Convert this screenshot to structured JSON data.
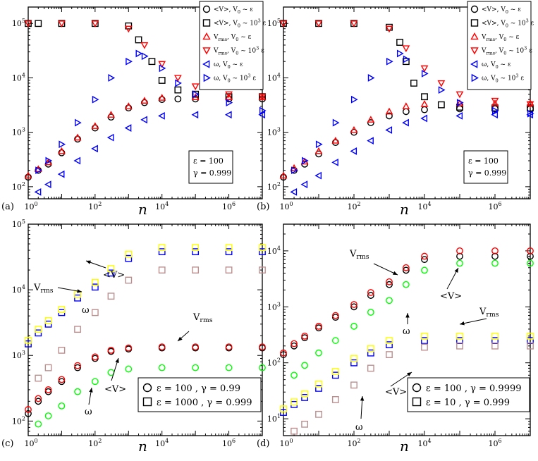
{
  "panels": [
    {
      "label": "(a)",
      "xlabel": "n",
      "xrange": [
        1,
        10000000
      ],
      "yrange": [
        60,
        200000
      ],
      "x_tick_labels": [
        "10^0",
        "10^2",
        "10^4",
        "10^6"
      ],
      "y_tick_labels": [
        "10^2",
        "10^3",
        "10^4",
        "10^5"
      ],
      "params": [
        "ε = 100",
        "γ = 0.999"
      ],
      "legend": [
        "<V>, V0 ~ ε",
        "<V>, V0 ~ 10^3 ε",
        "Vrms, V0 ~ ε",
        "Vrms, V0 ~ 10^3 ε",
        "ω, V0 ~ ε",
        "ω, V0 ~ 10^3 ε"
      ],
      "annotations": []
    },
    {
      "label": "(b)",
      "xlabel": "n",
      "xrange": [
        1,
        10000000
      ],
      "yrange": [
        60,
        200000
      ],
      "x_tick_labels": [
        "10^0",
        "10^2",
        "10^4",
        "10^6"
      ],
      "y_tick_labels": [
        "10^2",
        "10^3",
        "10^4",
        "10^5"
      ],
      "params": [
        "ε = 100",
        "γ = 0.999"
      ],
      "legend": [
        "<V>, V0 ~ ε",
        "<V>, V0 ~ 10^3 ε",
        "Vrms, V0 ~ ε",
        "Vrms, V0 ~ 10^3 ε",
        "ω, V0 ~ ε",
        "ω, V0 ~ 10^3 ε"
      ],
      "annotations": []
    },
    {
      "label": "(c)",
      "xlabel": "n",
      "xrange": [
        1,
        10000000
      ],
      "yrange": [
        60,
        100000
      ],
      "x_tick_labels": [
        "10^0",
        "10^2",
        "10^4",
        "10^6"
      ],
      "y_tick_labels": [
        "10^2",
        "10^3",
        "10^4",
        "10^5"
      ],
      "params": [],
      "legend": [
        "ε = 100 , γ = 0.99",
        "ε = 1000 , γ = 0.999"
      ],
      "annotations": [
        "Vrms",
        "ω",
        "<V>",
        "Vrms",
        "ω",
        "<V>"
      ]
    },
    {
      "label": "(d)",
      "xlabel": "n",
      "xrange": [
        1,
        10000000
      ],
      "yrange": [
        5,
        30000
      ],
      "x_tick_labels": [
        "10^0",
        "10^2",
        "10^4",
        "10^6"
      ],
      "y_tick_labels": [
        "10^1",
        "10^2",
        "10^3",
        "10^4"
      ],
      "params": [],
      "legend": [
        "ε = 100 , γ = 0.9999",
        "ε = 10 , γ = 0.999"
      ],
      "annotations": [
        "Vrms",
        "<V>",
        "ω",
        "Vrms",
        "<V>",
        "ω"
      ]
    }
  ],
  "chart_data": [
    {
      "type": "scatter",
      "title": "(a)",
      "xlabel": "n",
      "ylabel": "",
      "xscale": "log",
      "yscale": "log",
      "xlim": [
        1,
        10000000
      ],
      "ylim": [
        60,
        200000
      ],
      "series": [
        {
          "name": "<V>, V0 ~ ε",
          "marker": "circle",
          "color": "#000000",
          "x": [
            1,
            2,
            4,
            10,
            30,
            100,
            300,
            1000,
            3000,
            10000,
            30000,
            100000,
            1000000,
            10000000
          ],
          "y": [
            150,
            200,
            260,
            420,
            750,
            1200,
            1900,
            2800,
            3500,
            4000,
            4100,
            4100,
            4100,
            4100
          ]
        },
        {
          "name": "<V>, V0 ~ 10^3 ε",
          "marker": "square",
          "color": "#000000",
          "x": [
            1,
            2,
            10,
            100,
            1000,
            2000,
            5000,
            10000,
            30000,
            100000,
            1000000,
            10000000
          ],
          "y": [
            100000,
            100000,
            100000,
            100000,
            90000,
            50000,
            20000,
            9000,
            6000,
            5000,
            4500,
            4500
          ]
        },
        {
          "name": "Vrms, V0 ~ ε",
          "marker": "triangle-up",
          "color": "#ff0000",
          "x": [
            1,
            2,
            4,
            10,
            30,
            100,
            300,
            1000,
            3000,
            10000,
            100000,
            1000000,
            10000000
          ],
          "y": [
            160,
            210,
            280,
            450,
            800,
            1300,
            2100,
            3000,
            3800,
            4300,
            4400,
            4400,
            4400
          ]
        },
        {
          "name": "Vrms, V0 ~ 10^3 ε",
          "marker": "triangle-down",
          "color": "#ff0000",
          "x": [
            1,
            10,
            100,
            1000,
            3000,
            10000,
            30000,
            100000,
            1000000,
            10000000
          ],
          "y": [
            100000,
            100000,
            100000,
            80000,
            40000,
            18000,
            10000,
            7000,
            5000,
            4500
          ]
        },
        {
          "name": "ω, V0 ~ ε",
          "marker": "triangle-left",
          "color": "#0000ff",
          "x": [
            2,
            4,
            10,
            30,
            100,
            300,
            1000,
            3000,
            10000,
            100000,
            1000000,
            10000000
          ],
          "y": [
            80,
            110,
            170,
            300,
            500,
            800,
            1200,
            1700,
            2000,
            2100,
            2100,
            2100
          ]
        },
        {
          "name": "ω, V0 ~ 10^3 ε",
          "marker": "triangle-right",
          "color": "#0000ff",
          "x": [
            2,
            4,
            10,
            30,
            100,
            300,
            1000,
            2000,
            3000,
            10000,
            30000,
            100000,
            1000000,
            10000000
          ],
          "y": [
            200,
            300,
            600,
            1500,
            4000,
            10000,
            20000,
            28000,
            25000,
            15000,
            8000,
            5000,
            3500,
            2500
          ]
        }
      ]
    },
    {
      "type": "scatter",
      "title": "(b)",
      "xlabel": "n",
      "ylabel": "",
      "xscale": "log",
      "yscale": "log",
      "xlim": [
        1,
        10000000
      ],
      "ylim": [
        60,
        200000
      ],
      "series": [
        {
          "name": "<V>, V0 ~ ε",
          "marker": "circle",
          "color": "#000000",
          "x": [
            1,
            2,
            4,
            10,
            30,
            100,
            300,
            1000,
            3000,
            10000,
            100000,
            1000000,
            10000000
          ],
          "y": [
            150,
            200,
            260,
            400,
            650,
            1000,
            1500,
            2000,
            2400,
            2600,
            2700,
            2700,
            2700
          ]
        },
        {
          "name": "<V>, V0 ~ 10^3 ε",
          "marker": "square",
          "color": "#000000",
          "x": [
            1,
            10,
            100,
            1000,
            2000,
            3000,
            5000,
            10000,
            30000,
            100000,
            1000000,
            10000000
          ],
          "y": [
            100000,
            100000,
            100000,
            85000,
            45000,
            20000,
            8000,
            4500,
            3200,
            2900,
            2800,
            2800
          ]
        },
        {
          "name": "Vrms, V0 ~ ε",
          "marker": "triangle-up",
          "color": "#ff0000",
          "x": [
            1,
            2,
            4,
            10,
            30,
            100,
            300,
            1000,
            3000,
            10000,
            100000,
            1000000,
            10000000
          ],
          "y": [
            160,
            220,
            290,
            450,
            700,
            1100,
            1700,
            2400,
            3000,
            3300,
            3400,
            3400,
            3400
          ]
        },
        {
          "name": "Vrms, V0 ~ 10^3 ε",
          "marker": "triangle-down",
          "color": "#ff0000",
          "x": [
            1,
            10,
            100,
            1000,
            3000,
            10000,
            30000,
            100000,
            1000000,
            10000000
          ],
          "y": [
            100000,
            100000,
            100000,
            80000,
            35000,
            15000,
            8000,
            5000,
            3800,
            3300
          ]
        },
        {
          "name": "ω, V0 ~ ε",
          "marker": "triangle-left",
          "color": "#0000ff",
          "x": [
            2,
            4,
            10,
            30,
            100,
            300,
            1000,
            3000,
            10000,
            100000,
            1000000,
            10000000
          ],
          "y": [
            80,
            110,
            160,
            280,
            450,
            700,
            1100,
            1500,
            1800,
            2000,
            2100,
            2100
          ]
        },
        {
          "name": "ω, V0 ~ 10^3 ε",
          "marker": "triangle-right",
          "color": "#0000ff",
          "x": [
            2,
            4,
            10,
            30,
            100,
            300,
            1000,
            2000,
            3000,
            10000,
            30000,
            100000,
            1000000,
            10000000
          ],
          "y": [
            200,
            300,
            600,
            1500,
            4000,
            10000,
            20000,
            28000,
            22000,
            12000,
            6000,
            3500,
            2500,
            2200
          ]
        }
      ]
    },
    {
      "type": "scatter",
      "title": "(c)",
      "xlabel": "n",
      "ylabel": "",
      "xscale": "log",
      "yscale": "log",
      "xlim": [
        1,
        10000000
      ],
      "ylim": [
        60,
        100000
      ],
      "series": [
        {
          "name": "ε = 100 , γ = 0.99 (<V>)",
          "marker": "circle",
          "color": "#000000",
          "x": [
            1,
            2,
            4,
            10,
            30,
            100,
            300,
            1000,
            10000,
            100000,
            1000000,
            10000000
          ],
          "y": [
            130,
            200,
            280,
            400,
            650,
            900,
            1150,
            1250,
            1300,
            1300,
            1300,
            1300
          ]
        },
        {
          "name": "ε = 100 , γ = 0.99 (Vrms)",
          "marker": "circle",
          "color": "#ff0000",
          "x": [
            1,
            2,
            4,
            10,
            30,
            100,
            300,
            1000,
            10000,
            100000,
            1000000,
            10000000
          ],
          "y": [
            150,
            220,
            300,
            430,
            700,
            950,
            1200,
            1300,
            1350,
            1350,
            1350,
            1350
          ]
        },
        {
          "name": "ε = 100 , γ = 0.99 (ω)",
          "marker": "circle",
          "color": "#00ff00",
          "x": [
            2,
            4,
            10,
            30,
            100,
            300,
            1000,
            10000,
            100000,
            1000000,
            10000000
          ],
          "y": [
            90,
            120,
            170,
            280,
            400,
            550,
            620,
            650,
            650,
            650,
            650
          ]
        },
        {
          "name": "ε = 1000 , γ = 0.999 (<V>)",
          "marker": "square",
          "color": "#0000ff",
          "x": [
            1,
            2,
            4,
            10,
            30,
            100,
            300,
            1000,
            10000,
            100000,
            1000000,
            10000000
          ],
          "y": [
            1500,
            2200,
            3000,
            4500,
            7500,
            11000,
            18000,
            30000,
            38000,
            38000,
            38000,
            38000
          ]
        },
        {
          "name": "ε = 1000 , γ = 0.999 (Vrms)",
          "marker": "square",
          "color": "#ffff00",
          "x": [
            1,
            2,
            4,
            10,
            30,
            100,
            300,
            1000,
            10000,
            100000,
            1000000,
            10000000
          ],
          "y": [
            1700,
            2500,
            3400,
            5000,
            8500,
            13000,
            21000,
            35000,
            44000,
            44000,
            44000,
            44000
          ]
        },
        {
          "name": "ε = 1000 , γ = 0.999 (ω)",
          "marker": "square",
          "color": "#bc8f8f",
          "x": [
            2,
            4,
            10,
            30,
            100,
            300,
            1000,
            10000,
            100000,
            1000000,
            10000000
          ],
          "y": [
            450,
            650,
            1200,
            2500,
            4500,
            8000,
            14000,
            20000,
            20000,
            20000,
            20000
          ]
        }
      ]
    },
    {
      "type": "scatter",
      "title": "(d)",
      "xlabel": "n",
      "ylabel": "",
      "xscale": "log",
      "yscale": "log",
      "xlim": [
        1,
        10000000
      ],
      "ylim": [
        5,
        30000
      ],
      "series": [
        {
          "name": "ε = 100 , γ = 0.9999 (<V>)",
          "marker": "circle",
          "color": "#000000",
          "x": [
            1,
            2,
            4,
            10,
            30,
            100,
            300,
            1000,
            3000,
            10000,
            100000,
            1000000,
            10000000
          ],
          "y": [
            140,
            200,
            280,
            420,
            650,
            1000,
            1600,
            2500,
            4500,
            7000,
            8000,
            8000,
            8000
          ]
        },
        {
          "name": "ε = 100 , γ = 0.9999 (Vrms)",
          "marker": "circle",
          "color": "#ff0000",
          "x": [
            1,
            2,
            4,
            10,
            30,
            100,
            300,
            1000,
            3000,
            10000,
            100000,
            1000000,
            10000000
          ],
          "y": [
            150,
            220,
            300,
            450,
            700,
            1100,
            1800,
            2800,
            5000,
            8000,
            10000,
            10000,
            10000
          ]
        },
        {
          "name": "ε = 100 , γ = 0.9999 (ω)",
          "marker": "circle",
          "color": "#00ff00",
          "x": [
            2,
            4,
            10,
            30,
            100,
            300,
            1000,
            3000,
            10000,
            100000,
            1000000,
            10000000
          ],
          "y": [
            60,
            90,
            150,
            250,
            450,
            800,
            1300,
            2500,
            4500,
            6000,
            6000,
            6000
          ]
        },
        {
          "name": "ε = 10 , γ = 0.999 (<V>)",
          "marker": "square",
          "color": "#0000ff",
          "x": [
            1,
            2,
            4,
            10,
            30,
            100,
            300,
            1000,
            10000,
            100000,
            1000000,
            10000000
          ],
          "y": [
            13,
            18,
            24,
            35,
            60,
            100,
            150,
            210,
            250,
            250,
            250,
            250
          ]
        },
        {
          "name": "ε = 10 , γ = 0.999 (Vrms)",
          "marker": "square",
          "color": "#ffff00",
          "x": [
            1,
            2,
            4,
            10,
            30,
            100,
            300,
            1000,
            10000,
            100000,
            1000000,
            10000000
          ],
          "y": [
            15,
            20,
            28,
            42,
            70,
            120,
            180,
            250,
            300,
            300,
            300,
            300
          ]
        },
        {
          "name": "ε = 10 , γ = 0.999 (ω)",
          "marker": "square",
          "color": "#bc8f8f",
          "x": [
            2,
            4,
            10,
            30,
            100,
            300,
            1000,
            10000,
            100000,
            1000000,
            10000000
          ],
          "y": [
            6,
            8,
            12,
            22,
            40,
            80,
            140,
            190,
            200,
            200,
            200
          ]
        }
      ]
    }
  ]
}
